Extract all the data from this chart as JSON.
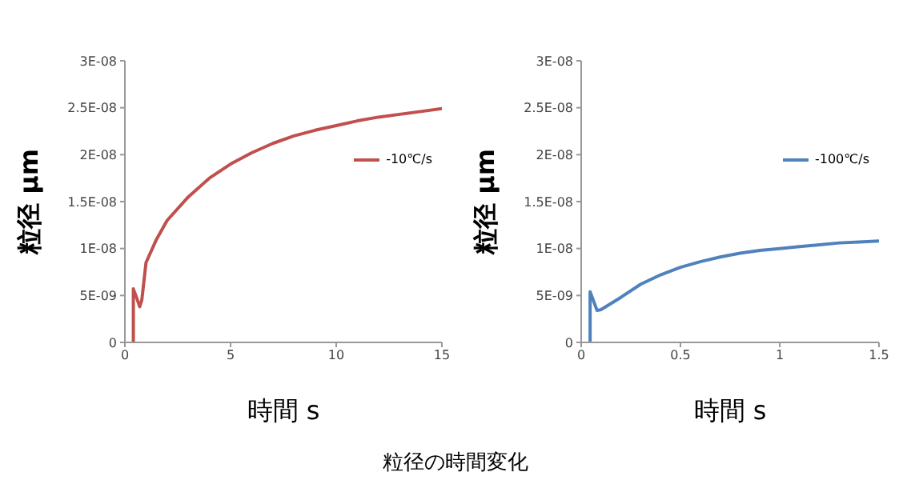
{
  "chart_data": [
    {
      "type": "line",
      "xlabel": "時間  s",
      "ylabel": "粒径  μm",
      "legend": "right",
      "marker": "none",
      "grid": false,
      "annotations": [
        "粒径の時間変化"
      ],
      "xlim": [
        0,
        15
      ],
      "xticks": [
        0,
        5,
        10,
        15
      ],
      "ylim": [
        0,
        3e-08
      ],
      "yticks": [
        0,
        {
          "value": 5e-09,
          "label": "5E-09"
        },
        {
          "value": 1e-08,
          "label": "1E-08"
        },
        {
          "value": 1.5e-08,
          "label": "1.5E-08"
        },
        {
          "value": 2e-08,
          "label": "2E-08"
        },
        {
          "value": 2.5e-08,
          "label": "2.5E-08"
        },
        {
          "value": 3e-08,
          "label": "3E-08"
        }
      ],
      "series": [
        {
          "name": "-10℃/s",
          "color": "#c0504d",
          "x": [
            0.4,
            0.4,
            0.55,
            0.7,
            0.8,
            1,
            1.5,
            2,
            3,
            4,
            5,
            6,
            7,
            8,
            9,
            10,
            11,
            12,
            13,
            14,
            15
          ],
          "values": [
            0,
            5.7e-09,
            4.8e-09,
            3.8e-09,
            4.5e-09,
            8.5e-09,
            1.1e-08,
            1.3e-08,
            1.55e-08,
            1.75e-08,
            1.9e-08,
            2.02e-08,
            2.12e-08,
            2.2e-08,
            2.26e-08,
            2.31e-08,
            2.36e-08,
            2.4e-08,
            2.43e-08,
            2.46e-08,
            2.49e-08
          ]
        }
      ]
    },
    {
      "type": "line",
      "xlabel": "時間  s",
      "ylabel": "粒径  μm",
      "legend": "right",
      "marker": "none",
      "grid": false,
      "xlim": [
        0,
        1.5
      ],
      "xticks": [
        0,
        0.5,
        1,
        1.5
      ],
      "ylim": [
        0,
        3e-08
      ],
      "yticks": [
        0,
        {
          "value": 5e-09,
          "label": "5E-09"
        },
        {
          "value": 1e-08,
          "label": "1E-08"
        },
        {
          "value": 1.5e-08,
          "label": "1.5E-08"
        },
        {
          "value": 2e-08,
          "label": "2E-08"
        },
        {
          "value": 2.5e-08,
          "label": "2.5E-08"
        },
        {
          "value": 3e-08,
          "label": "3E-08"
        }
      ],
      "series": [
        {
          "name": "-100℃/s",
          "color": "#4f81bd",
          "x": [
            0.045,
            0.045,
            0.08,
            0.1,
            0.2,
            0.3,
            0.4,
            0.5,
            0.6,
            0.7,
            0.8,
            0.9,
            1,
            1.1,
            1.2,
            1.3,
            1.4,
            1.5
          ],
          "values": [
            0,
            5.4e-09,
            3.4e-09,
            3.5e-09,
            4.8e-09,
            6.2e-09,
            7.2e-09,
            8e-09,
            8.6e-09,
            9.1e-09,
            9.5e-09,
            9.8e-09,
            1e-08,
            1.02e-08,
            1.04e-08,
            1.06e-08,
            1.07e-08,
            1.08e-08
          ]
        }
      ]
    }
  ]
}
